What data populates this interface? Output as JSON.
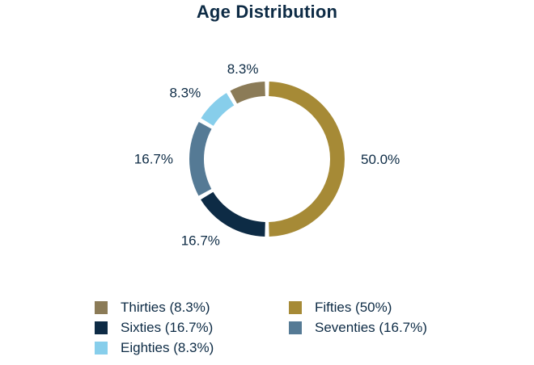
{
  "chart_data": {
    "type": "pie",
    "title": "Age Distribution",
    "donut": true,
    "start_angle_deg": 0,
    "direction": "clockwise",
    "slices": [
      {
        "name": "Fifties",
        "value": 50.0,
        "label": "50.0%",
        "color": "#a68a36",
        "legend": "Fifties (50%)"
      },
      {
        "name": "Sixties",
        "value": 16.7,
        "label": "16.7%",
        "color": "#0d2b45",
        "legend": "Sixties (16.7%)"
      },
      {
        "name": "Seventies",
        "value": 16.7,
        "label": "16.7%",
        "color": "#557a95",
        "legend": "Seventies (16.7%)"
      },
      {
        "name": "Eighties",
        "value": 8.3,
        "label": "8.3%",
        "color": "#87ceeb",
        "legend": "Eighties (8.3%)"
      },
      {
        "name": "Thirties",
        "value": 8.3,
        "label": "8.3%",
        "color": "#8b7b57",
        "legend": "Thirties (8.3%)"
      }
    ],
    "legend_order": [
      "Thirties",
      "Fifties",
      "Sixties",
      "Seventies",
      "Eighties"
    ],
    "legend_placement": "bottom"
  }
}
